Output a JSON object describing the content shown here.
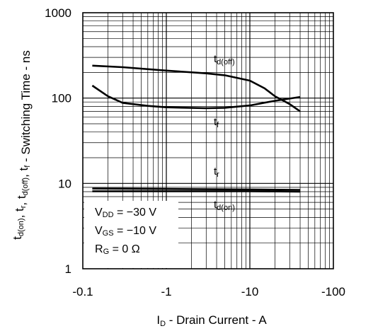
{
  "chart_data": {
    "type": "line",
    "xscale": "log",
    "yscale": "log",
    "xlim": [
      -0.1,
      -100
    ],
    "ylim": [
      1,
      1000
    ],
    "grid": true,
    "x_ticks": [
      "-0.1",
      "-1",
      "-10",
      "-100"
    ],
    "y_ticks": [
      "1",
      "10",
      "100",
      "1000"
    ],
    "xlabel": {
      "main": "I",
      "sub": "D",
      "rest": " - Drain Current - A"
    },
    "ylabel": "tₑ(ₒₙ), tᵣ, tₑ(ₒff), tƒ - Switching Time - ns",
    "ylabel_parts": [
      {
        "t": "t",
        "s": "d(on)"
      },
      {
        "t": ", t",
        "s": "r"
      },
      {
        "t": ", t",
        "s": "d(off)"
      },
      {
        "t": ", t",
        "s": "f"
      },
      {
        "t": " - Switching Time - ns",
        "s": ""
      }
    ],
    "series": [
      {
        "name": "td(off)",
        "label_main": "t",
        "label_sub": "d(off)",
        "color": "#000000",
        "x": [
          -0.13,
          -0.3,
          -1,
          -3,
          -5,
          -10,
          -15,
          -20,
          -30,
          -40
        ],
        "y": [
          240,
          230,
          210,
          195,
          185,
          160,
          130,
          105,
          85,
          70
        ]
      },
      {
        "name": "tf",
        "label_main": "t",
        "label_sub": "f",
        "color": "#000000",
        "x": [
          -0.13,
          -0.2,
          -0.3,
          -0.6,
          -1,
          -3,
          -5,
          -10,
          -20,
          -40
        ],
        "y": [
          140,
          105,
          88,
          81,
          78,
          76,
          77,
          82,
          93,
          103
        ]
      },
      {
        "name": "tr",
        "label_main": "t",
        "label_sub": "r",
        "color": "#000000",
        "x": [
          -0.13,
          -1,
          -10,
          -40
        ],
        "y": [
          8.7,
          8.6,
          8.5,
          8.4
        ]
      },
      {
        "name": "td(on)",
        "label_main": "t",
        "label_sub": "d(on)",
        "color": "#000000",
        "x": [
          -0.13,
          -1,
          -10,
          -40
        ],
        "y": [
          8.1,
          8.1,
          8.1,
          8.0
        ]
      }
    ],
    "conditions": [
      {
        "main": "V",
        "sub": "DD",
        "rest": " = −30 V"
      },
      {
        "main": "V",
        "sub": "GS",
        "rest": " = −10 V"
      },
      {
        "main": "R",
        "sub": "G",
        "rest": " = 0 Ω"
      }
    ]
  }
}
